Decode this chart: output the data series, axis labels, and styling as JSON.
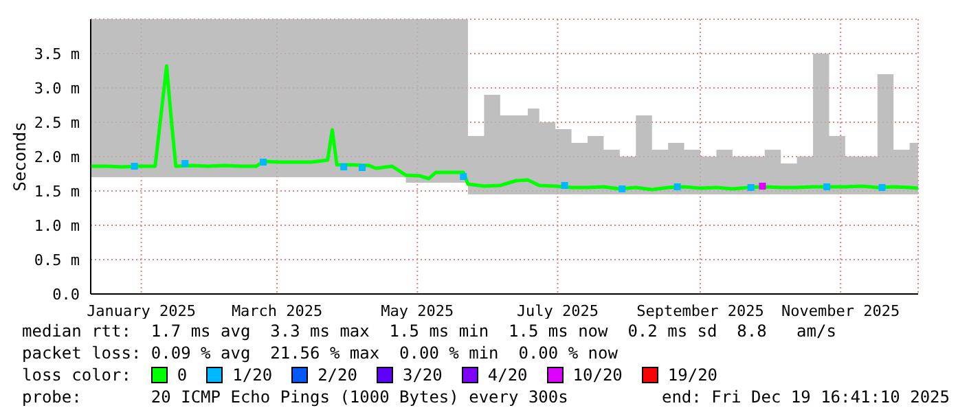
{
  "chart_data": {
    "type": "line",
    "ylabel": "Seconds",
    "legend_title": "loss color:",
    "legend": "bottom",
    "grid": true,
    "xlim": [
      "2024-12-25",
      "2025-12-19T16:41"
    ],
    "xticks": [
      {
        "value": "2025-01-16",
        "label": "January 2025"
      },
      {
        "value": "2025-03-16",
        "label": "March 2025"
      },
      {
        "value": "2025-05-16",
        "label": "May 2025"
      },
      {
        "value": "2025-07-16",
        "label": "July 2025"
      },
      {
        "value": "2025-09-16",
        "label": "September 2025"
      },
      {
        "value": "2025-11-16",
        "label": "November 2025"
      }
    ],
    "ylim": [
      0,
      4
    ],
    "yticks": [
      {
        "value": 0,
        "label": "0.0"
      },
      {
        "value": 0.5,
        "label": "0.5 m"
      },
      {
        "value": 1,
        "label": "1.0 m"
      },
      {
        "value": 1.5,
        "label": "1.5 m"
      },
      {
        "value": 2,
        "label": "2.0 m"
      },
      {
        "value": 2.5,
        "label": "2.5 m"
      },
      {
        "value": 3,
        "label": "3.0 m"
      },
      {
        "value": 3.5,
        "label": "3.5 m"
      }
    ],
    "series": [
      {
        "name": "0",
        "color": "#00ff00",
        "marker": "none",
        "x": [
          "2024-12-25",
          "2025-01-01",
          "2025-01-08",
          "2025-01-15",
          "2025-01-22",
          "2025-01-27",
          "2025-01-29",
          "2025-01-31",
          "2025-02-07",
          "2025-02-14",
          "2025-02-21",
          "2025-02-28",
          "2025-03-07",
          "2025-03-10",
          "2025-03-17",
          "2025-03-24",
          "2025-03-31",
          "2025-04-07",
          "2025-04-09",
          "2025-04-11",
          "2025-04-18",
          "2025-04-25",
          "2025-04-28",
          "2025-05-05",
          "2025-05-11",
          "2025-05-17",
          "2025-05-21",
          "2025-05-24",
          "2025-05-31",
          "2025-06-05",
          "2025-06-07",
          "2025-06-14",
          "2025-06-21",
          "2025-06-28",
          "2025-07-03",
          "2025-07-08",
          "2025-07-15",
          "2025-07-22",
          "2025-07-29",
          "2025-08-05",
          "2025-08-12",
          "2025-08-19",
          "2025-08-26",
          "2025-09-02",
          "2025-09-09",
          "2025-09-16",
          "2025-09-23",
          "2025-09-30",
          "2025-10-07",
          "2025-10-14",
          "2025-10-21",
          "2025-10-28",
          "2025-11-04",
          "2025-11-11",
          "2025-11-18",
          "2025-11-25",
          "2025-12-02",
          "2025-12-09",
          "2025-12-16",
          "2025-12-19T16:41"
        ],
        "values": [
          1.86,
          1.86,
          1.85,
          1.86,
          1.86,
          3.32,
          2.55,
          1.86,
          1.87,
          1.86,
          1.87,
          1.86,
          1.86,
          1.93,
          1.92,
          1.92,
          1.92,
          1.95,
          2.39,
          1.88,
          1.88,
          1.87,
          1.83,
          1.86,
          1.73,
          1.72,
          1.68,
          1.77,
          1.77,
          1.77,
          1.6,
          1.57,
          1.58,
          1.65,
          1.66,
          1.58,
          1.57,
          1.55,
          1.55,
          1.56,
          1.53,
          1.55,
          1.52,
          1.55,
          1.56,
          1.54,
          1.55,
          1.53,
          1.55,
          1.56,
          1.55,
          1.55,
          1.56,
          1.56,
          1.56,
          1.57,
          1.55,
          1.56,
          1.55,
          1.54
        ],
        "lower": [
          1.7,
          1.7,
          1.7,
          1.7,
          1.7,
          1.7,
          1.7,
          1.7,
          1.7,
          1.7,
          1.7,
          1.7,
          1.7,
          1.7,
          1.7,
          1.7,
          1.7,
          1.7,
          1.7,
          1.7,
          1.7,
          1.7,
          1.7,
          1.7,
          1.62,
          1.62,
          1.62,
          1.62,
          1.62,
          1.62,
          1.45,
          1.45,
          1.45,
          1.45,
          1.45,
          1.45,
          1.45,
          1.45,
          1.45,
          1.45,
          1.45,
          1.45,
          1.45,
          1.45,
          1.45,
          1.45,
          1.45,
          1.45,
          1.45,
          1.45,
          1.45,
          1.45,
          1.45,
          1.45,
          1.45,
          1.45,
          1.45,
          1.45,
          1.45,
          1.45
        ],
        "upper": [
          4,
          4,
          4,
          4,
          4,
          4,
          4,
          4,
          4,
          4,
          4,
          4,
          4,
          4,
          4,
          4,
          4,
          4,
          4,
          4,
          4,
          4,
          4,
          4,
          4,
          4,
          4,
          4,
          4,
          4,
          2.3,
          2.9,
          2.6,
          2.6,
          2.7,
          2.5,
          2.4,
          2.2,
          2.3,
          2.1,
          2.0,
          2.6,
          2.1,
          2.2,
          2.1,
          2.0,
          2.1,
          2.0,
          2.0,
          2.1,
          1.9,
          2.0,
          3.5,
          2.3,
          2.0,
          2.0,
          3.2,
          2.1,
          2.2,
          2.0
        ]
      },
      {
        "name": "1/20",
        "type": "scatter",
        "color": "#00b8ff",
        "marker": "square",
        "x": [
          "2025-01-13",
          "2025-02-04",
          "2025-03-10",
          "2025-04-14",
          "2025-04-22",
          "2025-06-05",
          "2025-07-19",
          "2025-08-13",
          "2025-09-06",
          "2025-10-08",
          "2025-11-10",
          "2025-12-04"
        ],
        "values": [
          1.86,
          1.9,
          1.92,
          1.85,
          1.84,
          1.71,
          1.58,
          1.53,
          1.56,
          1.55,
          1.56,
          1.55
        ]
      },
      {
        "name": "2/20",
        "type": "scatter",
        "color": "#0059ff",
        "marker": "square"
      },
      {
        "name": "3/20",
        "type": "scatter",
        "color": "#5e00ff",
        "marker": "square"
      },
      {
        "name": "4/20",
        "type": "scatter",
        "color": "#7e00ff",
        "marker": "square"
      },
      {
        "name": "10/20",
        "type": "scatter",
        "color": "#dd00ff",
        "marker": "square",
        "x": [
          "2025-10-13"
        ],
        "values": [
          1.57
        ]
      },
      {
        "name": "19/20",
        "type": "scatter",
        "color": "#ff0000",
        "marker": "square"
      }
    ],
    "annotations": [
      "median rtt:  1.7 ms avg  3.3 ms max  1.5 ms min  1.5 ms now  0.2 ms sd  8.8   am/s",
      "packet loss: 0.09 % avg  21.56 % max  0.00 % min  0.00 % now",
      "probe:       20 ICMP Echo Pings (1000 Bytes) every 300s",
      "end: Fri Dec 19 16:41:10 2025"
    ]
  }
}
